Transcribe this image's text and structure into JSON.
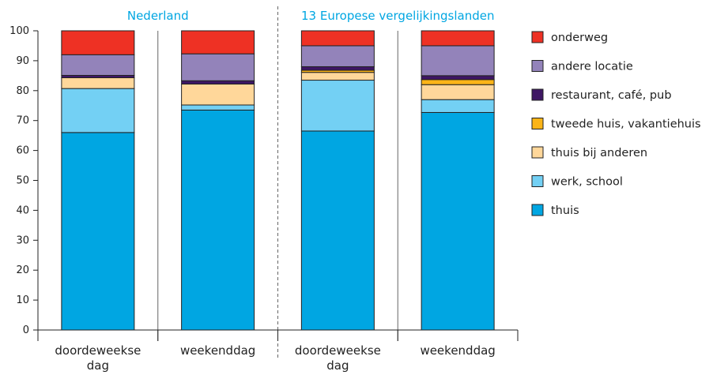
{
  "chart_data": {
    "type": "bar",
    "stacked": true,
    "groups": [
      {
        "label": "Nederland",
        "categories": [
          0,
          1
        ]
      },
      {
        "label": "13 Europese vergelijkingslanden",
        "categories": [
          2,
          3
        ]
      }
    ],
    "categories": [
      [
        "doordeweekse",
        "dag"
      ],
      [
        "weekenddag"
      ],
      [
        "doordeweekse",
        "dag"
      ],
      [
        "weekenddag"
      ]
    ],
    "series": [
      {
        "name": "thuis",
        "color": "#00a6e2",
        "values": [
          66,
          73.5,
          66.5,
          72.7
        ]
      },
      {
        "name": "werk, school",
        "color": "#73d0f4",
        "values": [
          14.7,
          1.7,
          17,
          4.3
        ]
      },
      {
        "name": "thuis bij anderen",
        "color": "#ffd79a",
        "values": [
          3.6,
          7,
          2.6,
          5
        ]
      },
      {
        "name": "tweede huis, vakantiehuis",
        "color": "#fbb417",
        "values": [
          0,
          0,
          0.7,
          1.7
        ]
      },
      {
        "name": "restaurant, café, pub",
        "color": "#3e1664",
        "values": [
          0.8,
          1.1,
          1.2,
          1.3
        ]
      },
      {
        "name": "andere locatie",
        "color": "#9383ba",
        "values": [
          6.9,
          9,
          7,
          10
        ]
      },
      {
        "name": "onderweg",
        "color": "#ee3124",
        "values": [
          8,
          7.7,
          5,
          5
        ]
      }
    ],
    "legend_order": [
      "onderweg",
      "andere locatie",
      "restaurant, café, pub",
      "tweede huis, vakantiehuis",
      "thuis bij anderen",
      "werk, school",
      "thuis"
    ],
    "legend_position": "right",
    "y_ticks": [
      0,
      10,
      20,
      30,
      40,
      50,
      60,
      70,
      80,
      90,
      100
    ],
    "ylim": [
      0,
      100
    ],
    "grid": false,
    "title_color": "#00a6e2"
  }
}
